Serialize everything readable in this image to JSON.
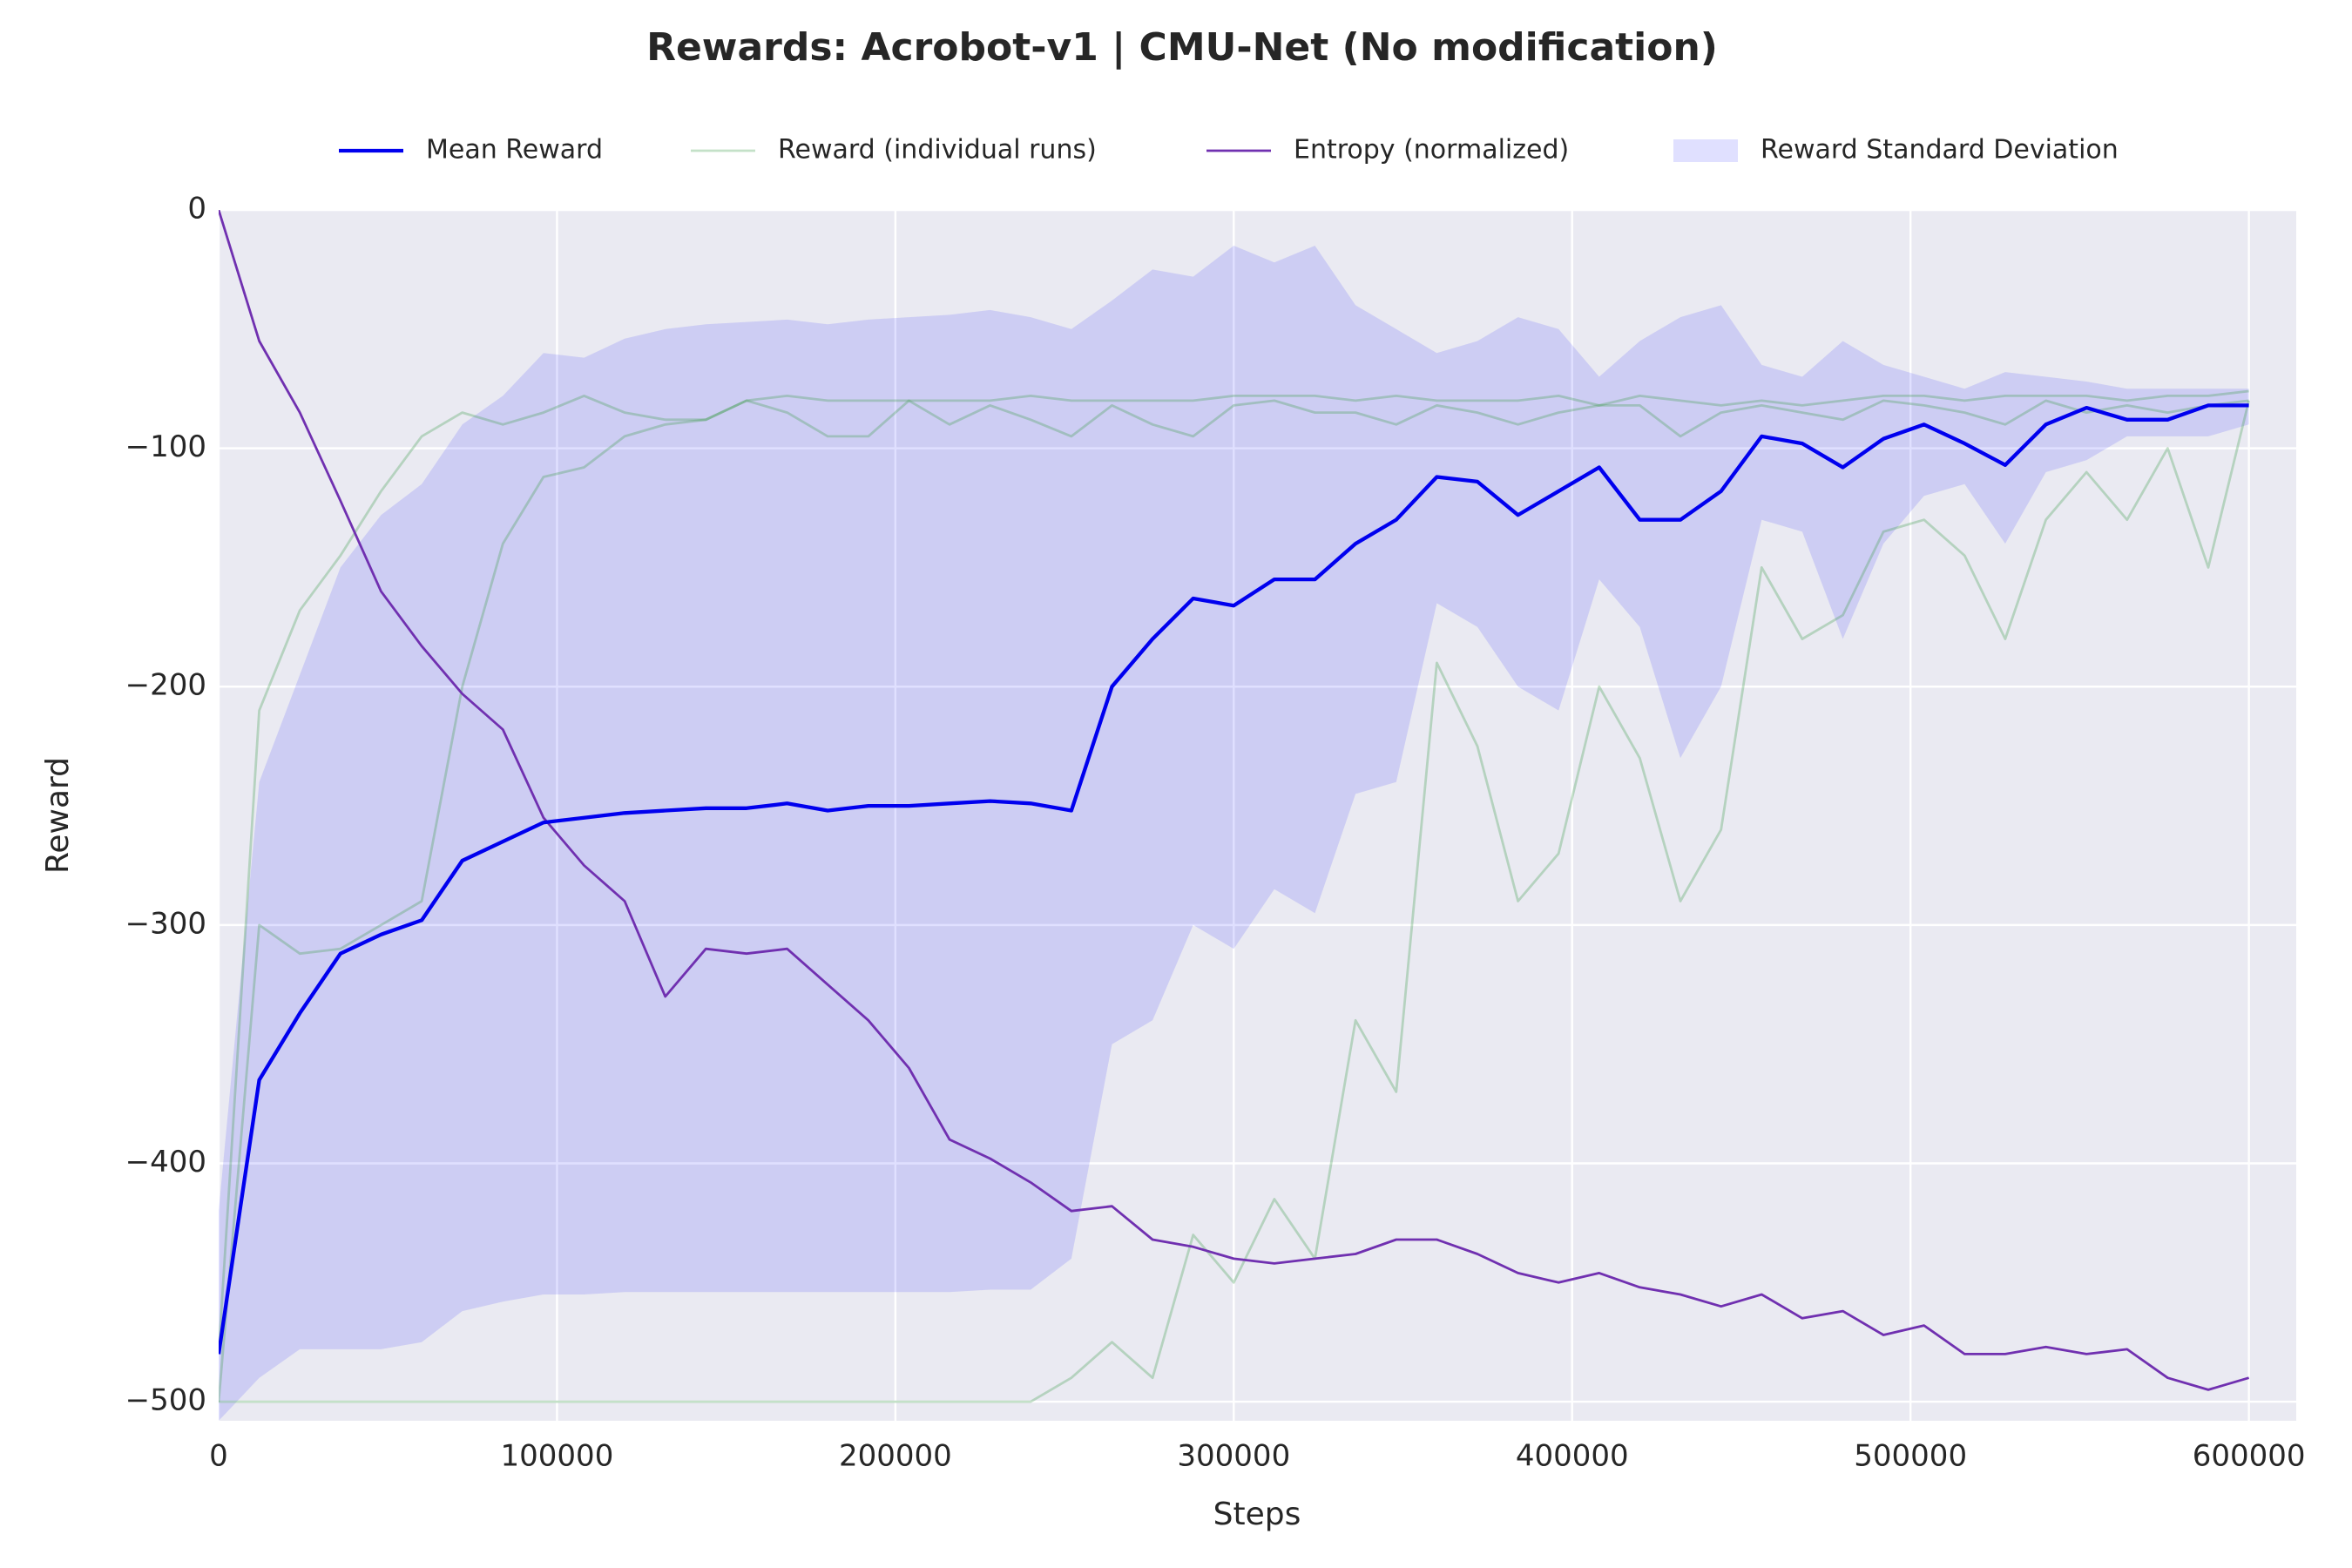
{
  "chart_data": {
    "type": "line",
    "title": "Rewards: Acrobot-v1 | CMU-Net (No modification)",
    "xlabel": "Steps",
    "ylabel": "Reward",
    "x": [
      0,
      12000,
      24000,
      36000,
      48000,
      60000,
      72000,
      84000,
      96000,
      108000,
      120000,
      132000,
      144000,
      156000,
      168000,
      180000,
      192000,
      204000,
      216000,
      228000,
      240000,
      252000,
      264000,
      276000,
      288000,
      300000,
      312000,
      324000,
      336000,
      348000,
      360000,
      372000,
      384000,
      396000,
      408000,
      420000,
      432000,
      444000,
      456000,
      468000,
      480000,
      492000,
      504000,
      516000,
      528000,
      540000,
      552000,
      564000,
      576000,
      588000,
      600000
    ],
    "xlim": [
      0,
      614000
    ],
    "ylim": [
      -508,
      0
    ],
    "xticks": [
      0,
      100000,
      200000,
      300000,
      400000,
      500000,
      600000
    ],
    "yticks": [
      {
        "value": -500,
        "label": "−500"
      },
      {
        "value": -400,
        "label": "−400"
      },
      {
        "value": -300,
        "label": "−300"
      },
      {
        "value": -200,
        "label": "−200"
      },
      {
        "value": -100,
        "label": "−100"
      },
      0
    ],
    "grid": true,
    "legend": "top",
    "series": [
      {
        "name": "Mean Reward",
        "color": "#0000ee",
        "values": [
          -480,
          -365,
          -337,
          -312,
          -304,
          -298,
          -273,
          -265,
          -257,
          -255,
          -253,
          -252,
          -251,
          -251,
          -249,
          -252,
          -250,
          -250,
          -249,
          -248,
          -249,
          -252,
          -200,
          -180,
          -163,
          -166,
          -155,
          -155,
          -140,
          -130,
          -112,
          -114,
          -128,
          -118,
          -108,
          -130,
          -130,
          -118,
          -95,
          -98,
          -108,
          -96,
          -90,
          -98,
          -107,
          -90,
          -83,
          -88,
          -88,
          -82,
          -82
        ]
      },
      {
        "name": "Entropy (normalized)",
        "color": "#7030b0",
        "values": [
          0,
          -55,
          -85,
          -122,
          -160,
          -183,
          -203,
          -218,
          -255,
          -275,
          -290,
          -330,
          -310,
          -312,
          -310,
          -325,
          -340,
          -360,
          -390,
          -398,
          -408,
          -420,
          -418,
          -432,
          -435,
          -440,
          -442,
          -440,
          -438,
          -432,
          -432,
          -438,
          -446,
          -450,
          -446,
          -452,
          -455,
          -460,
          -455,
          -465,
          -462,
          -472,
          -468,
          -480,
          -480,
          -477,
          -480,
          -478,
          -490,
          -495,
          -490
        ]
      }
    ],
    "runs": {
      "name": "Reward (individual runs)",
      "color": "#3a9a4a",
      "series": [
        [
          -480,
          -210,
          -168,
          -145,
          -118,
          -95,
          -85,
          -90,
          -85,
          -78,
          -85,
          -88,
          -88,
          -80,
          -78,
          -80,
          -80,
          -80,
          -80,
          -80,
          -78,
          -80,
          -80,
          -80,
          -80,
          -78,
          -78,
          -78,
          -80,
          -78,
          -80,
          -80,
          -80,
          -78,
          -82,
          -78,
          -80,
          -82,
          -80,
          -82,
          -80,
          -78,
          -78,
          -80,
          -78,
          -78,
          -78,
          -80,
          -78,
          -78,
          -76
        ],
        [
          -500,
          -300,
          -312,
          -310,
          -300,
          -290,
          -200,
          -140,
          -112,
          -108,
          -95,
          -90,
          -88,
          -80,
          -85,
          -95,
          -95,
          -80,
          -90,
          -82,
          -88,
          -95,
          -82,
          -90,
          -95,
          -82,
          -80,
          -85,
          -85,
          -90,
          -82,
          -85,
          -90,
          -85,
          -82,
          -82,
          -95,
          -85,
          -82,
          -85,
          -88,
          -80,
          -82,
          -85,
          -90,
          -80,
          -85,
          -82,
          -85,
          -82,
          -80
        ],
        [
          -500,
          -500,
          -500,
          -500,
          -500,
          -500,
          -500,
          -500,
          -500,
          -500,
          -500,
          -500,
          -500,
          -500,
          -500,
          -500,
          -500,
          -500,
          -500,
          -500,
          -500,
          -490,
          -475,
          -490,
          -430,
          -450,
          -415,
          -440,
          -340,
          -370,
          -190,
          -225,
          -290,
          -270,
          -200,
          -230,
          -290,
          -260,
          -150,
          -180,
          -170,
          -135,
          -130,
          -145,
          -180,
          -130,
          -110,
          -130,
          -100,
          -150,
          -80
        ]
      ]
    },
    "band": {
      "name": "Reward Standard Deviation",
      "color": "#0000ff",
      "upper": [
        -420,
        -240,
        -195,
        -150,
        -128,
        -115,
        -90,
        -78,
        -60,
        -62,
        -54,
        -50,
        -48,
        -47,
        -46,
        -48,
        -46,
        -45,
        -44,
        -42,
        -45,
        -50,
        -38,
        -25,
        -28,
        -15,
        -22,
        -15,
        -40,
        -50,
        -60,
        -55,
        -45,
        -50,
        -70,
        -55,
        -45,
        -40,
        -65,
        -70,
        -55,
        -65,
        -70,
        -75,
        -68,
        -70,
        -72,
        -75,
        -75,
        -75,
        -75
      ],
      "lower": [
        -508,
        -490,
        -478,
        -478,
        -478,
        -475,
        -462,
        -458,
        -455,
        -455,
        -454,
        -454,
        -454,
        -454,
        -454,
        -454,
        -454,
        -454,
        -454,
        -453,
        -453,
        -440,
        -350,
        -340,
        -300,
        -310,
        -285,
        -295,
        -245,
        -240,
        -165,
        -175,
        -200,
        -210,
        -155,
        -175,
        -230,
        -200,
        -130,
        -135,
        -180,
        -140,
        -120,
        -115,
        -140,
        -110,
        -105,
        -95,
        -95,
        -95,
        -90
      ]
    }
  }
}
